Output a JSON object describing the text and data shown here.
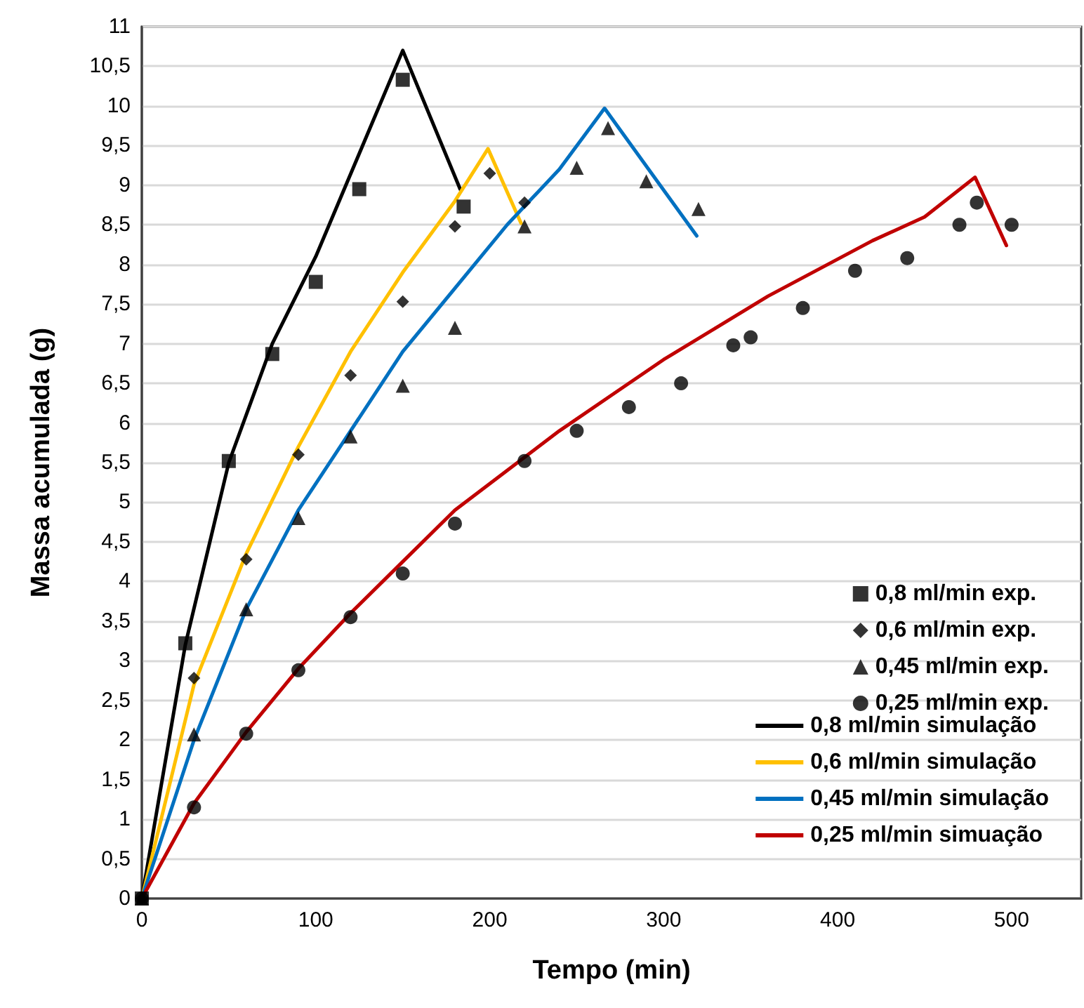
{
  "chart_data": {
    "type": "scatter",
    "xlabel": "Tempo (min)",
    "ylabel": "Massa acumulada (g)",
    "xlim": [
      0,
      540
    ],
    "xticks": [
      0,
      100,
      200,
      300,
      400,
      500
    ],
    "ylim": [
      0,
      11
    ],
    "yticks": [
      0,
      {
        "value": 0.5,
        "label": "0,5"
      },
      1,
      {
        "value": 1.5,
        "label": "1,5"
      },
      2,
      {
        "value": 2.5,
        "label": "2,5"
      },
      3,
      {
        "value": 3.5,
        "label": "3,5"
      },
      4,
      {
        "value": 4.5,
        "label": "4,5"
      },
      5,
      {
        "value": 5.5,
        "label": "5,5"
      },
      6,
      {
        "value": 6.5,
        "label": "6,5"
      },
      7,
      {
        "value": 7.5,
        "label": "7,5"
      },
      8,
      {
        "value": 8.5,
        "label": "8,5"
      },
      9,
      {
        "value": 9.5,
        "label": "9,5"
      },
      10,
      {
        "value": 10.5,
        "label": "10,5"
      },
      11
    ],
    "grid": "y",
    "legend": "bottom right",
    "series": [
      {
        "name": "0,8 ml/min exp.",
        "marker": "square",
        "color": "#000000",
        "x": [
          0,
          25,
          50,
          75,
          100,
          125,
          150,
          185
        ],
        "values": [
          0,
          3.22,
          5.52,
          6.87,
          7.78,
          8.95,
          10.33,
          8.73
        ]
      },
      {
        "name": "0,6 ml/min exp.",
        "marker": "diamond",
        "color": "#000000",
        "x": [
          0,
          30,
          60,
          90,
          120,
          150,
          180,
          200,
          220
        ],
        "values": [
          0,
          2.78,
          4.28,
          5.6,
          6.6,
          7.53,
          8.48,
          9.15,
          8.78
        ]
      },
      {
        "name": "0,45 ml/min exp.",
        "marker": "triangle",
        "color": "#000000",
        "x": [
          0,
          30,
          60,
          90,
          120,
          150,
          180,
          220,
          250,
          268,
          290,
          320
        ],
        "values": [
          0,
          2.07,
          3.65,
          4.8,
          5.83,
          6.47,
          7.2,
          8.48,
          9.22,
          9.72,
          9.05,
          8.7
        ]
      },
      {
        "name": "0,25 ml/min exp.",
        "marker": "circle",
        "color": "#000000",
        "x": [
          0,
          30,
          60,
          90,
          120,
          150,
          180,
          220,
          250,
          280,
          310,
          340,
          350,
          380,
          410,
          440,
          470,
          480,
          500
        ],
        "values": [
          0,
          1.15,
          2.08,
          2.88,
          3.55,
          4.1,
          4.73,
          5.52,
          5.9,
          6.2,
          6.5,
          6.98,
          7.08,
          7.45,
          7.92,
          8.08,
          8.5,
          8.78,
          8.5
        ]
      },
      {
        "name": "0,8 ml/min simulação",
        "type": "line",
        "marker": "none",
        "color": "#000000",
        "x": [
          0,
          25,
          50,
          75,
          100,
          125,
          150,
          183
        ],
        "values": [
          0,
          3.2,
          5.5,
          7.0,
          8.1,
          9.4,
          10.7,
          8.95
        ]
      },
      {
        "name": "0,6 ml/min simulação",
        "type": "line",
        "marker": "none",
        "color": "#ffc000",
        "x": [
          0,
          30,
          60,
          90,
          120,
          150,
          180,
          199,
          218
        ],
        "values": [
          0,
          2.7,
          4.35,
          5.7,
          6.9,
          7.9,
          8.8,
          9.46,
          8.52
        ]
      },
      {
        "name": "0,45 ml/min simulação",
        "type": "line",
        "marker": "none",
        "color": "#0070c0",
        "x": [
          0,
          30,
          60,
          90,
          120,
          150,
          180,
          210,
          240,
          266,
          319
        ],
        "values": [
          0,
          2.0,
          3.65,
          4.9,
          5.9,
          6.9,
          7.7,
          8.5,
          9.2,
          9.97,
          8.36
        ]
      },
      {
        "name": "0,25 ml/min simuação",
        "type": "line",
        "marker": "none",
        "color": "#c00000",
        "x": [
          0,
          30,
          60,
          90,
          120,
          150,
          180,
          210,
          240,
          270,
          300,
          330,
          360,
          390,
          420,
          450,
          479,
          497
        ],
        "values": [
          0,
          1.2,
          2.1,
          2.9,
          3.6,
          4.25,
          4.9,
          5.4,
          5.9,
          6.35,
          6.8,
          7.2,
          7.6,
          7.95,
          8.3,
          8.6,
          9.1,
          8.24
        ]
      }
    ]
  }
}
